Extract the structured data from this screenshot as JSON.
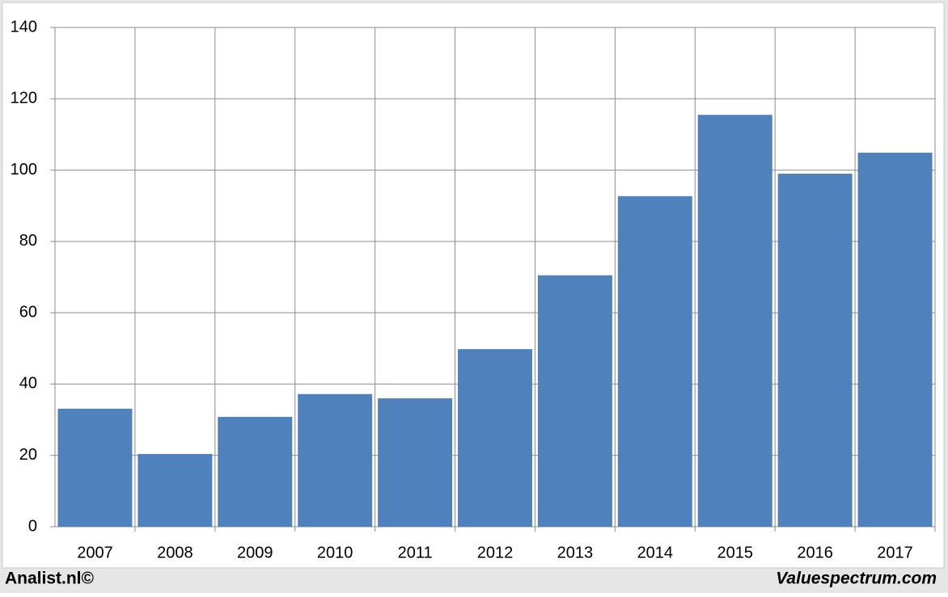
{
  "chart_data": {
    "type": "bar",
    "categories": [
      "2007",
      "2008",
      "2009",
      "2010",
      "2011",
      "2012",
      "2013",
      "2014",
      "2015",
      "2016",
      "2017"
    ],
    "values": [
      33.1,
      20.4,
      30.8,
      37.2,
      36.0,
      49.8,
      70.5,
      92.7,
      115.5,
      99.0,
      104.9
    ],
    "color": "#4f81bd",
    "ylim": [
      0,
      140
    ],
    "yticks": [
      0,
      20,
      40,
      60,
      80,
      100,
      120,
      140
    ],
    "grid": true,
    "footer_left": "Analist.nl©",
    "footer_right": "Valuespectrum.com"
  }
}
